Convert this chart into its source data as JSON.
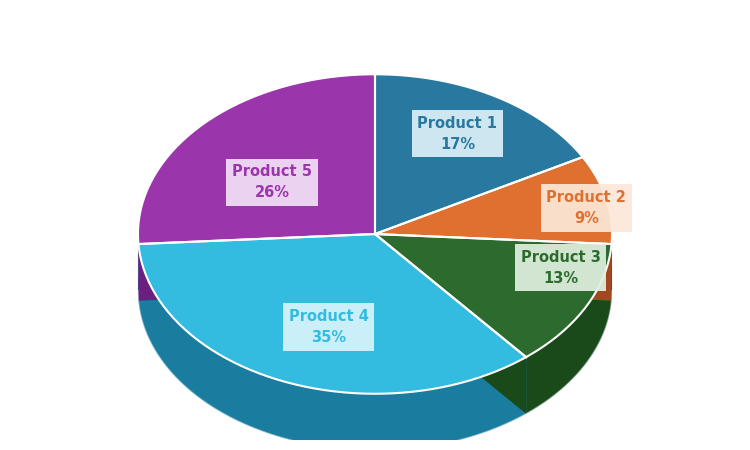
{
  "labels": [
    "Product 1",
    "Product 2",
    "Product 3",
    "Product 4",
    "Product 5"
  ],
  "values": [
    17,
    9,
    13,
    35,
    26
  ],
  "colors": [
    "#2878A0",
    "#E07030",
    "#2D6A2D",
    "#33BBE0",
    "#9B35AB"
  ],
  "side_colors": [
    "#1A5070",
    "#A04820",
    "#1A4A1A",
    "#1A7DA0",
    "#6B2080"
  ],
  "label_colors": [
    "#2878A0",
    "#E07030",
    "#2D6A2D",
    "#33BBE0",
    "#9B35AB"
  ],
  "label_bg_colors": [
    "#DCF0F8",
    "#FCE8D8",
    "#E0F0E0",
    "#D8F4FC",
    "#F4E0F8"
  ],
  "background": "#ffffff",
  "startangle": 90
}
